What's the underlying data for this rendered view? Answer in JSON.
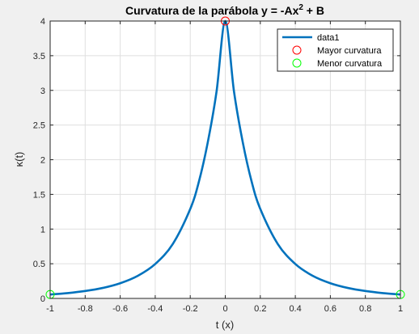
{
  "chart_data": {
    "type": "line",
    "title_main": "Curvatura de la parábola y = -Ax",
    "title_sup": "2",
    "title_tail": " + B",
    "xlabel": "t (x)",
    "ylabel": "κ(t)",
    "xlim": [
      -1,
      1
    ],
    "ylim": [
      0,
      4
    ],
    "x_ticks": [
      -1,
      -0.8,
      -0.6,
      -0.4,
      -0.2,
      0,
      0.2,
      0.4,
      0.6,
      0.8,
      1
    ],
    "x_tick_labels": [
      "-1",
      "-0.8",
      "-0.6",
      "-0.4",
      "-0.2",
      "0",
      "0.2",
      "0.4",
      "0.6",
      "0.8",
      "1"
    ],
    "y_ticks": [
      0,
      0.5,
      1,
      1.5,
      2,
      2.5,
      3,
      3.5,
      4
    ],
    "y_tick_labels": [
      "0",
      "0.5",
      "1",
      "1.5",
      "2",
      "2.5",
      "3",
      "3.5",
      "4"
    ],
    "grid": true,
    "legend_placement": "top-right",
    "series": [
      {
        "name": "data1",
        "color": "#0072bd",
        "x": [
          -1,
          -0.9,
          -0.8,
          -0.7,
          -0.6,
          -0.5,
          -0.4,
          -0.3,
          -0.2,
          -0.15,
          -0.1,
          -0.05,
          0,
          0.05,
          0.1,
          0.15,
          0.2,
          0.3,
          0.4,
          0.5,
          0.6,
          0.7,
          0.8,
          0.9,
          1
        ],
        "y": [
          0.057,
          0.077,
          0.107,
          0.151,
          0.219,
          0.325,
          0.496,
          0.784,
          1.29,
          1.69,
          2.25,
          2.98,
          4.0,
          2.98,
          2.25,
          1.69,
          1.29,
          0.784,
          0.496,
          0.325,
          0.219,
          0.151,
          0.107,
          0.077,
          0.057
        ]
      }
    ],
    "markers": [
      {
        "name": "Mayor curvatura",
        "color": "#ff0000",
        "points": [
          [
            0,
            4
          ]
        ]
      },
      {
        "name": "Menor curvatura",
        "color": "#00ff00",
        "points": [
          [
            -1,
            0.057
          ],
          [
            1,
            0.057
          ]
        ]
      }
    ]
  }
}
